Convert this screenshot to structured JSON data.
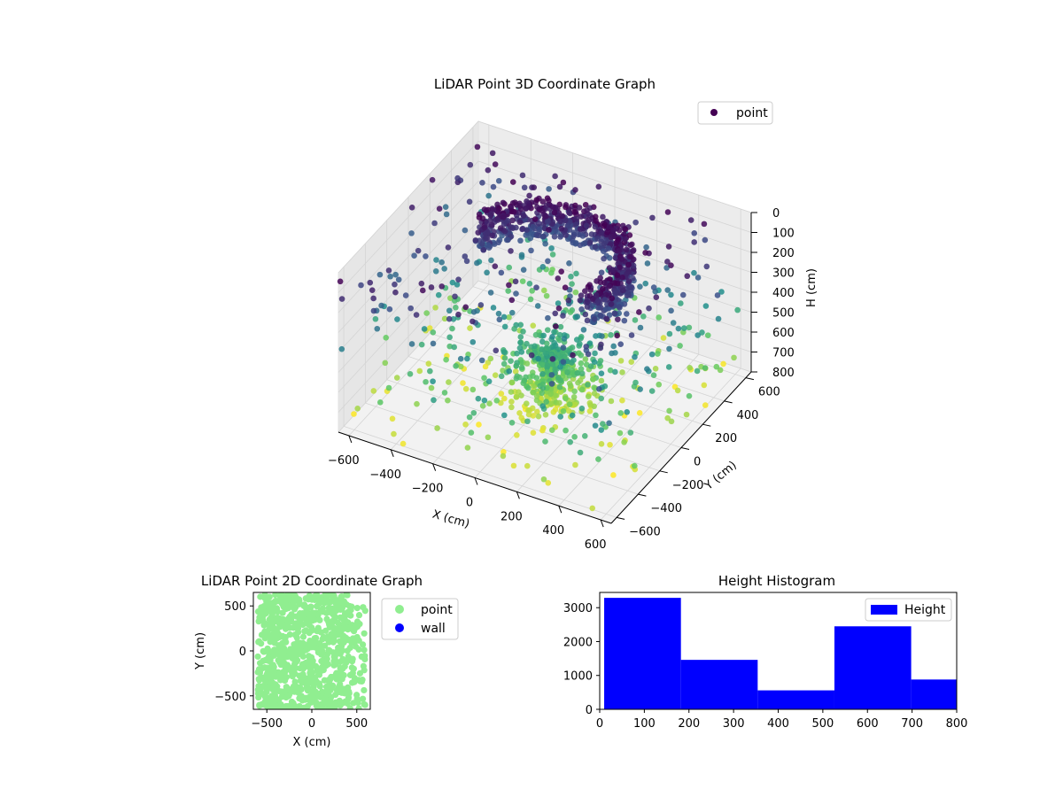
{
  "chart_data": [
    {
      "type": "scatter",
      "projection": "3d",
      "title": "LiDAR Point 3D Coordinate Graph",
      "xlabel": "X (cm)",
      "ylabel": "Y (cm)",
      "zlabel": "H (cm)",
      "xlim": [
        -650,
        650
      ],
      "ylim": [
        -650,
        650
      ],
      "zlim": [
        0,
        800
      ],
      "z_inverted": true,
      "xticks": [
        -600,
        -400,
        -200,
        0,
        200,
        400,
        600
      ],
      "yticks": [
        -600,
        -400,
        -200,
        0,
        200,
        400,
        600
      ],
      "zticks": [
        0,
        100,
        200,
        300,
        400,
        500,
        600,
        700,
        800
      ],
      "colormap": "viridis",
      "legend": {
        "position": "top-right",
        "entries": [
          {
            "name": "point",
            "color": "#440154"
          }
        ]
      },
      "grid": true,
      "point_count_estimate": 8500,
      "series": [
        {
          "name": "point",
          "note_structure": "dense curved wall band of points at low H (near top of inverted axis) plus a dense cluster near the origin at mid height, with sparse scattered points around the perimeter"
        }
      ]
    },
    {
      "type": "scatter",
      "title": "LiDAR Point 2D Coordinate Graph",
      "xlabel": "X (cm)",
      "ylabel": "Y (cm)",
      "xlim": [
        -650,
        650
      ],
      "ylim": [
        -650,
        650
      ],
      "xticks": [
        -500,
        0,
        500
      ],
      "yticks": [
        -500,
        0,
        500
      ],
      "legend": {
        "position": "outside-right",
        "entries": [
          {
            "name": "point",
            "color": "#90ee90"
          },
          {
            "name": "wall",
            "color": "#0000ff"
          }
        ]
      },
      "series": [
        {
          "name": "point",
          "color": "#90ee90",
          "fill_region": "dense fill covering nearly the whole X-Y extent"
        },
        {
          "name": "wall",
          "color": "#0000ff",
          "values": []
        }
      ]
    },
    {
      "type": "bar",
      "subtype": "histogram",
      "title": "Height Histogram",
      "xlim": [
        0,
        800
      ],
      "ylim": [
        0,
        3450
      ],
      "xticks": [
        0,
        100,
        200,
        300,
        400,
        500,
        600,
        700,
        800
      ],
      "yticks": [
        0,
        1000,
        2000,
        3000
      ],
      "legend": {
        "position": "top-right",
        "entries": [
          {
            "name": "Height",
            "color": "#0000ff"
          }
        ]
      },
      "bins": [
        {
          "start": 10,
          "end": 182,
          "count": 3290
        },
        {
          "start": 182,
          "end": 354,
          "count": 1460
        },
        {
          "start": 354,
          "end": 526,
          "count": 560
        },
        {
          "start": 526,
          "end": 698,
          "count": 2450
        },
        {
          "start": 698,
          "end": 870,
          "count": 880
        }
      ],
      "color": "#0000ff"
    }
  ]
}
